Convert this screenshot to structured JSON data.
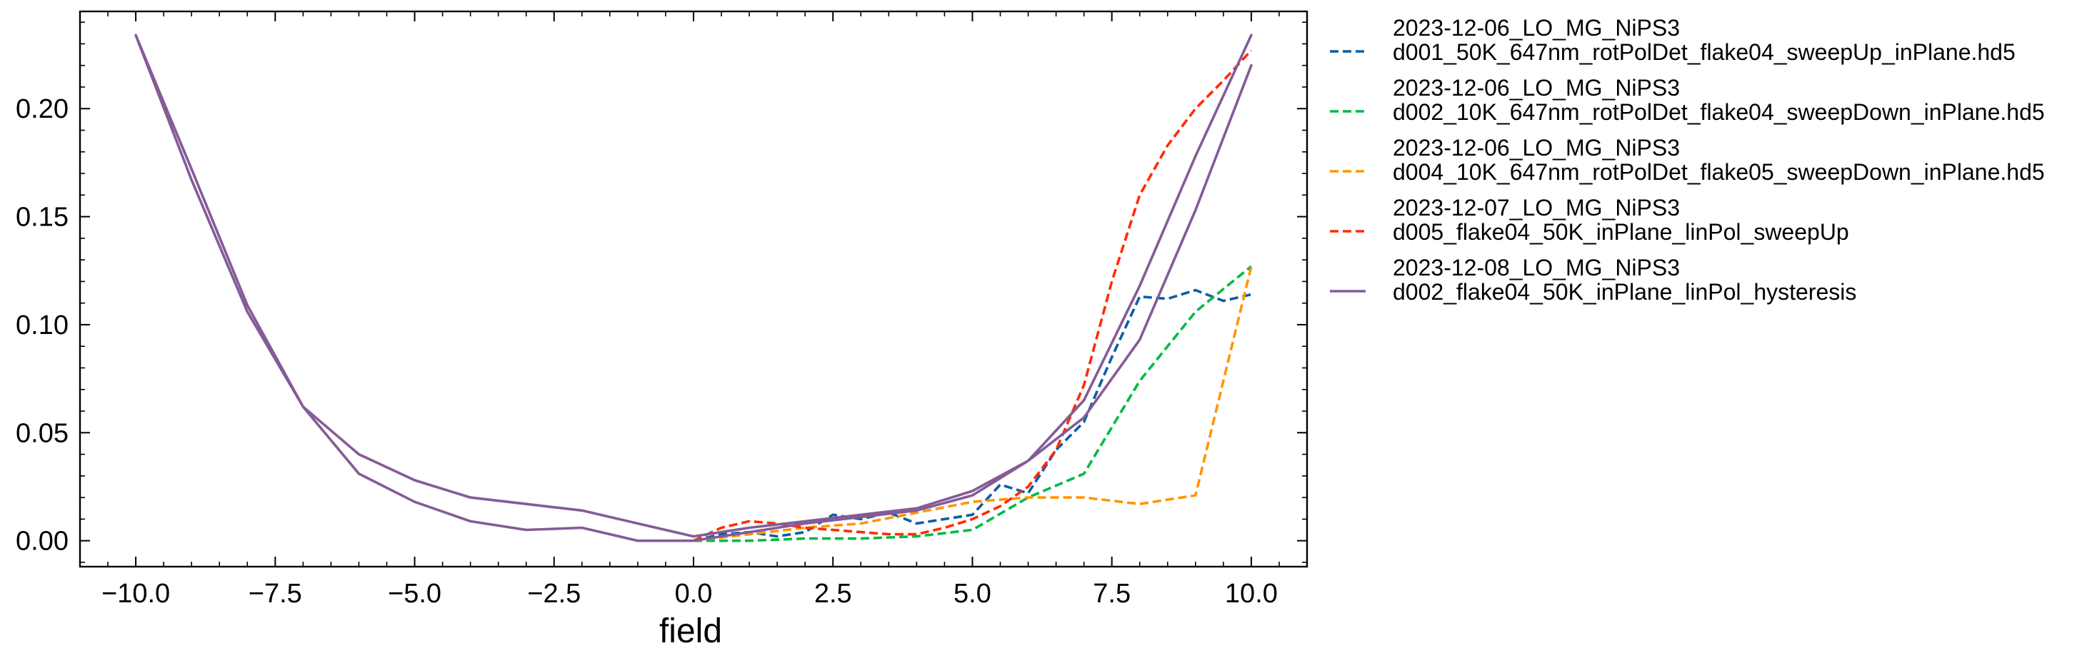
{
  "chart_data": {
    "type": "line",
    "title": "",
    "xlabel": "field",
    "ylabel": "",
    "xlim": [
      -11,
      11
    ],
    "ylim": [
      -0.012,
      0.245
    ],
    "xticks": [
      -10.0,
      -7.5,
      -5.0,
      -2.5,
      0.0,
      2.5,
      5.0,
      7.5,
      10.0
    ],
    "xtick_labels": [
      "−10.0",
      "−7.5",
      "−5.0",
      "−2.5",
      "0.0",
      "2.5",
      "5.0",
      "7.5",
      "10.0"
    ],
    "yticks": [
      0.0,
      0.05,
      0.1,
      0.15,
      0.2
    ],
    "ytick_labels": [
      "0.00",
      "0.05",
      "0.10",
      "0.15",
      "0.20"
    ],
    "grid": false,
    "legend_position": "outside-right",
    "series": [
      {
        "name": "2023-12-06_LO_MG_NiPS3\nd001_50K_647nm_rotPolDet_flake04_sweepUp_inPlane.hd5",
        "color": "#0C5DA5",
        "style": "dashed",
        "points": [
          [
            0,
            0.0
          ],
          [
            0.5,
            0.003
          ],
          [
            1,
            0.004
          ],
          [
            1.5,
            0.002
          ],
          [
            2,
            0.004
          ],
          [
            2.5,
            0.012
          ],
          [
            3,
            0.01
          ],
          [
            3.5,
            0.013
          ],
          [
            4,
            0.008
          ],
          [
            4.5,
            0.01
          ],
          [
            5,
            0.012
          ],
          [
            5.5,
            0.026
          ],
          [
            6,
            0.022
          ],
          [
            6.5,
            0.042
          ],
          [
            7,
            0.055
          ],
          [
            7.5,
            0.085
          ],
          [
            8,
            0.113
          ],
          [
            8.5,
            0.112
          ],
          [
            9,
            0.116
          ],
          [
            9.5,
            0.111
          ],
          [
            10,
            0.114
          ]
        ]
      },
      {
        "name": "2023-12-06_LO_MG_NiPS3\nd002_10K_647nm_rotPolDet_flake04_sweepDown_inPlane.hd5",
        "color": "#00B945",
        "style": "dashed",
        "points": [
          [
            0,
            0.0
          ],
          [
            1,
            0.0
          ],
          [
            2,
            0.001
          ],
          [
            3,
            0.001
          ],
          [
            4,
            0.002
          ],
          [
            5,
            0.005
          ],
          [
            6,
            0.02
          ],
          [
            7,
            0.031
          ],
          [
            8,
            0.074
          ],
          [
            9,
            0.106
          ],
          [
            10,
            0.127
          ]
        ]
      },
      {
        "name": "2023-12-06_LO_MG_NiPS3\nd004_10K_647nm_rotPolDet_flake05_sweepDown_inPlane.hd5",
        "color": "#FF9500",
        "style": "dashed",
        "points": [
          [
            0,
            0.0
          ],
          [
            1,
            0.003
          ],
          [
            2,
            0.006
          ],
          [
            3,
            0.008
          ],
          [
            4,
            0.013
          ],
          [
            5,
            0.018
          ],
          [
            6,
            0.02
          ],
          [
            7,
            0.02
          ],
          [
            8,
            0.017
          ],
          [
            9,
            0.021
          ],
          [
            10,
            0.127
          ]
        ]
      },
      {
        "name": "2023-12-07_LO_MG_NiPS3\nd005_flake04_50K_inPlane_linPol_sweepUp",
        "color": "#FF2C00",
        "style": "dashed",
        "points": [
          [
            0,
            0.0
          ],
          [
            0.5,
            0.006
          ],
          [
            1,
            0.009
          ],
          [
            1.5,
            0.008
          ],
          [
            2,
            0.006
          ],
          [
            2.5,
            0.005
          ],
          [
            3,
            0.004
          ],
          [
            3.5,
            0.003
          ],
          [
            4,
            0.003
          ],
          [
            4.5,
            0.006
          ],
          [
            5,
            0.01
          ],
          [
            5.5,
            0.016
          ],
          [
            6,
            0.025
          ],
          [
            6.5,
            0.042
          ],
          [
            7,
            0.072
          ],
          [
            7.5,
            0.12
          ],
          [
            8,
            0.16
          ],
          [
            8.5,
            0.183
          ],
          [
            9,
            0.2
          ],
          [
            9.5,
            0.213
          ],
          [
            10,
            0.227
          ]
        ]
      },
      {
        "name": "2023-12-08_LO_MG_NiPS3\nd002_flake04_50K_inPlane_linPol_hysteresis",
        "color": "#845B97",
        "style": "solid",
        "points": [
          [
            10,
            0.22
          ],
          [
            9,
            0.153
          ],
          [
            8,
            0.093
          ],
          [
            7,
            0.057
          ],
          [
            6,
            0.037
          ],
          [
            5,
            0.021
          ],
          [
            4,
            0.014
          ],
          [
            3,
            0.011
          ],
          [
            2,
            0.008
          ],
          [
            1,
            0.004
          ],
          [
            0,
            0.0
          ],
          [
            -1,
            0.0
          ],
          [
            -2,
            0.006
          ],
          [
            -3,
            0.005
          ],
          [
            -4,
            0.009
          ],
          [
            -5,
            0.018
          ],
          [
            -6,
            0.031
          ],
          [
            -7,
            0.062
          ],
          [
            -8,
            0.106
          ],
          [
            -9,
            0.167
          ],
          [
            -10,
            0.234
          ],
          [
            -9,
            0.172
          ],
          [
            -8,
            0.109
          ],
          [
            -7,
            0.062
          ],
          [
            -6,
            0.04
          ],
          [
            -5,
            0.028
          ],
          [
            -4,
            0.02
          ],
          [
            -3,
            0.017
          ],
          [
            -2,
            0.014
          ],
          [
            -1,
            0.008
          ],
          [
            0,
            0.002
          ],
          [
            1,
            0.006
          ],
          [
            2,
            0.009
          ],
          [
            3,
            0.012
          ],
          [
            4,
            0.015
          ],
          [
            5,
            0.023
          ],
          [
            6,
            0.037
          ],
          [
            7,
            0.065
          ],
          [
            8,
            0.118
          ],
          [
            9,
            0.178
          ],
          [
            10,
            0.234
          ]
        ]
      }
    ]
  }
}
